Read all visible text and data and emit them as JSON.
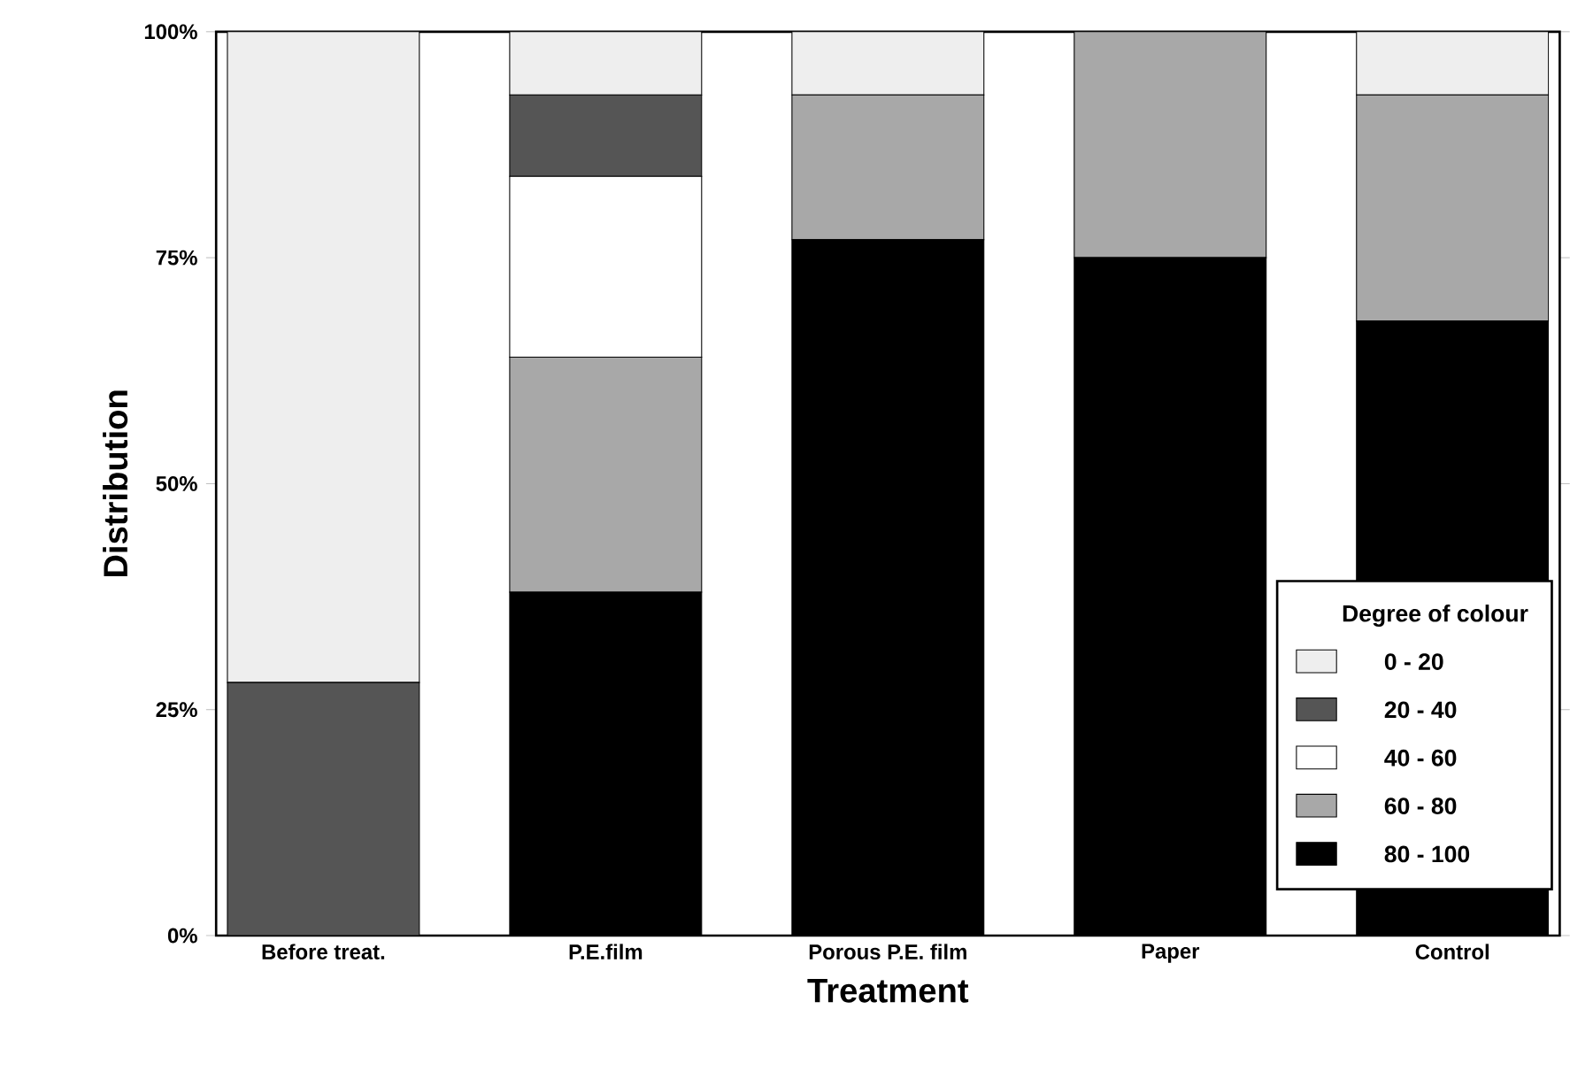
{
  "chart_data": {
    "type": "bar",
    "stacked": true,
    "xlabel": "Treatment",
    "ylabel": "Distribution",
    "legend_title": "Degree of colour",
    "legend": "bottom right",
    "categories": [
      "Before treat.",
      "P.E.film",
      "Porous P.E. film",
      "Paper",
      "Control"
    ],
    "ylim": [
      0,
      100
    ],
    "yticks": [
      {
        "value": 0,
        "label": "0%"
      },
      {
        "value": 25,
        "label": "25%"
      },
      {
        "value": 50,
        "label": "50%"
      },
      {
        "value": 75,
        "label": "75%"
      },
      {
        "value": 100,
        "label": "100%"
      }
    ],
    "series": [
      {
        "name": "80 - 100",
        "color": "#000000",
        "values": [
          null,
          38,
          77,
          75,
          68
        ]
      },
      {
        "name": "60 - 80",
        "color": "#a8a8a8",
        "values": [
          null,
          26,
          16,
          25,
          25
        ]
      },
      {
        "name": "40 - 60",
        "color": "#ffffff",
        "values": [
          null,
          20,
          null,
          null,
          null
        ]
      },
      {
        "name": "20 - 40",
        "color": "#555555",
        "values": [
          28,
          9,
          null,
          null,
          null
        ]
      },
      {
        "name": "0 - 20",
        "color": "#eeeeee",
        "values": [
          72,
          7,
          7,
          null,
          7
        ]
      }
    ]
  }
}
